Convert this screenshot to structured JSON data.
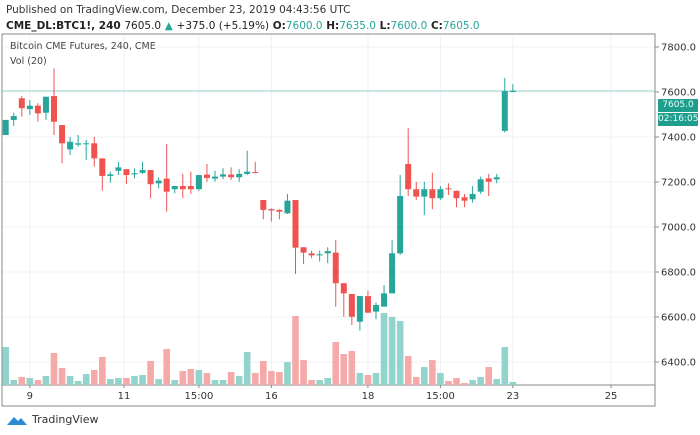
{
  "header": {
    "published": "Published on TradingView.com, December 23, 2019 04:43:56 UTC",
    "symbol": "CME_DL:BTC1!, 240",
    "last": "7605.0",
    "change": "+375.0 (+5.19%)",
    "o_label": "O:",
    "o": "7600.0",
    "h_label": "H:",
    "h": "7635.0",
    "l_label": "L:",
    "l": "7600.0",
    "c_label": "C:",
    "c": "7605.0"
  },
  "legend": {
    "title": "Bitcoin CME Futures, 240, CME",
    "volume": "Vol (20)"
  },
  "price_tag": {
    "price": "7605.0",
    "countdown": "02:16:05"
  },
  "brand": "TradingView",
  "colors": {
    "up": "#26a69a",
    "down": "#ef5350",
    "up_vol": "#92d3cb",
    "down_vol": "#f5a9a9",
    "grid": "#eef0f3",
    "axis": "#555555"
  },
  "chart_data": {
    "type": "candlestick",
    "title": "Bitcoin CME Futures, 240, CME",
    "ylim": [
      6330,
      7880
    ],
    "y_ticks": [
      "7800.0",
      "7600.0",
      "7400.0",
      "7200.0",
      "7000.0",
      "6800.0",
      "6600.0",
      "6400.0"
    ],
    "y_tick_values": [
      7800,
      7600,
      7400,
      7200,
      7000,
      6800,
      6600,
      6400
    ],
    "x_ticks": [
      {
        "label": "9",
        "index": 3
      },
      {
        "label": "11",
        "index": 14.7
      },
      {
        "label": "15:00",
        "index": 24
      },
      {
        "label": "16",
        "index": 33
      },
      {
        "label": "18",
        "index": 45
      },
      {
        "label": "15:00",
        "index": 54
      },
      {
        "label": "23",
        "index": 63
      },
      {
        "label": "25",
        "index": 75.2
      }
    ],
    "last_price_line": 7605,
    "ohlc": [
      [
        7409,
        7476,
        7409,
        7476
      ],
      [
        7476,
        7508,
        7449,
        7493
      ],
      [
        7572,
        7582,
        7490,
        7528
      ],
      [
        7524,
        7564,
        7498,
        7539
      ],
      [
        7539,
        7550,
        7468,
        7505
      ],
      [
        7508,
        7579,
        7476,
        7579
      ],
      [
        7582,
        7705,
        7409,
        7468
      ],
      [
        7453,
        7453,
        7283,
        7372
      ],
      [
        7345,
        7401,
        7320,
        7379
      ],
      [
        7366,
        7409,
        7357,
        7372
      ],
      [
        7369,
        7387,
        7298,
        7372
      ],
      [
        7372,
        7401,
        7268,
        7305
      ],
      [
        7305,
        7305,
        7161,
        7227
      ],
      [
        7227,
        7246,
        7197,
        7234
      ],
      [
        7250,
        7290,
        7231,
        7265
      ],
      [
        7257,
        7257,
        7191,
        7231
      ],
      [
        7234,
        7261,
        7216,
        7239
      ],
      [
        7241,
        7290,
        7236,
        7253
      ],
      [
        7253,
        7253,
        7128,
        7190
      ],
      [
        7194,
        7221,
        7172,
        7206
      ],
      [
        7215,
        7369,
        7068,
        7157
      ],
      [
        7168,
        7182,
        7150,
        7182
      ],
      [
        7182,
        7236,
        7128,
        7168
      ],
      [
        7182,
        7246,
        7147,
        7168
      ],
      [
        7168,
        7231,
        7161,
        7231
      ],
      [
        7233,
        7280,
        7201,
        7218
      ],
      [
        7215,
        7250,
        7201,
        7224
      ],
      [
        7224,
        7261,
        7212,
        7234
      ],
      [
        7233,
        7265,
        7209,
        7221
      ],
      [
        7221,
        7257,
        7201,
        7236
      ],
      [
        7236,
        7339,
        7231,
        7246
      ],
      [
        7244,
        7290,
        7239,
        7241
      ],
      [
        7120,
        7120,
        7034,
        7076
      ],
      [
        7079,
        7083,
        7024,
        7073
      ],
      [
        7076,
        7079,
        7034,
        7068
      ],
      [
        7061,
        7147,
        7058,
        7117
      ],
      [
        7120,
        7120,
        6791,
        6908
      ],
      [
        6910,
        6910,
        6836,
        6886
      ],
      [
        6883,
        6895,
        6861,
        6874
      ],
      [
        6874,
        6895,
        6846,
        6879
      ],
      [
        6883,
        6910,
        6839,
        6893
      ],
      [
        6886,
        6942,
        6646,
        6750
      ],
      [
        6750,
        6750,
        6601,
        6705
      ],
      [
        6702,
        6702,
        6564,
        6601
      ],
      [
        6579,
        6693,
        6539,
        6693
      ],
      [
        6693,
        6717,
        6619,
        6619
      ],
      [
        6624,
        6664,
        6590,
        6653
      ],
      [
        6646,
        6742,
        6646,
        6705
      ],
      [
        6705,
        6942,
        6705,
        6883
      ],
      [
        6883,
        7231,
        6876,
        7138
      ],
      [
        7280,
        7439,
        7138,
        7168
      ],
      [
        7168,
        7201,
        7120,
        7135
      ],
      [
        7135,
        7201,
        7053,
        7168
      ],
      [
        7168,
        7241,
        7079,
        7128
      ],
      [
        7128,
        7182,
        7120,
        7168
      ],
      [
        7172,
        7194,
        7142,
        7168
      ],
      [
        7161,
        7161,
        7088,
        7128
      ],
      [
        7132,
        7147,
        7088,
        7117
      ],
      [
        7123,
        7182,
        7108,
        7147
      ],
      [
        7157,
        7224,
        7147,
        7212
      ],
      [
        7216,
        7236,
        7138,
        7201
      ],
      [
        7212,
        7236,
        7194,
        7221
      ],
      [
        7427,
        7662,
        7420,
        7604
      ],
      [
        7600,
        7635,
        7600,
        7605
      ]
    ],
    "volume_relative": [
      38,
      5,
      8,
      7,
      5,
      9,
      32,
      17,
      9,
      4,
      11,
      15,
      28,
      6,
      7,
      7,
      9,
      10,
      24,
      6,
      36,
      5,
      14,
      16,
      15,
      12,
      5,
      5,
      13,
      9,
      33,
      12,
      24,
      14,
      13,
      23,
      69,
      25,
      5,
      5,
      7,
      43,
      31,
      34,
      12,
      10,
      12,
      72,
      68,
      64,
      29,
      8,
      18,
      25,
      12,
      4,
      7,
      2,
      5,
      8,
      18,
      6,
      38,
      3
    ]
  }
}
